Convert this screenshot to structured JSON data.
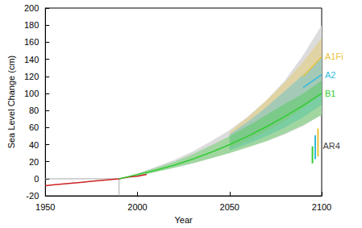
{
  "chart_data": {
    "type": "line",
    "xlabel": "Year",
    "ylabel": "Sea Level Change (cm)",
    "xlim": [
      1950,
      2100
    ],
    "xticks": [
      1950,
      2000,
      2050,
      2100
    ],
    "ylim": [
      -20,
      200
    ],
    "yticks": [
      -20,
      0,
      20,
      40,
      60,
      80,
      100,
      120,
      140,
      160,
      180,
      200
    ],
    "grid": false,
    "observed": {
      "color": "#cc2222",
      "x": [
        1950,
        1955,
        1960,
        1965,
        1970,
        1975,
        1980,
        1985,
        1990,
        1995,
        2000,
        2005
      ],
      "values": [
        -8,
        -7,
        -6,
        -5,
        -4,
        -3,
        -2,
        -1,
        0,
        2,
        3,
        5
      ]
    },
    "baseline": {
      "x": 1990,
      "y": 0
    },
    "x": [
      1990,
      2000,
      2010,
      2020,
      2030,
      2040,
      2050,
      2060,
      2070,
      2080,
      2090,
      2100
    ],
    "range": {
      "lower": [
        0,
        3,
        8,
        13,
        18,
        24,
        30,
        37,
        44,
        52,
        62,
        75
      ],
      "upper": [
        0,
        6,
        14,
        22,
        32,
        44,
        57,
        73,
        92,
        115,
        145,
        180
      ]
    },
    "series": [
      {
        "name": "A1Fi",
        "color": "#e8c43c",
        "values": [
          null,
          null,
          null,
          null,
          null,
          null,
          null,
          null,
          null,
          null,
          120,
          143
        ],
        "lower": [
          null,
          null,
          null,
          null,
          null,
          null,
          35,
          45,
          56,
          68,
          83,
          100
        ],
        "upper": [
          null,
          null,
          null,
          null,
          null,
          null,
          55,
          72,
          92,
          113,
          137,
          165
        ]
      },
      {
        "name": "A2",
        "color": "#33bbdd",
        "values": [
          null,
          null,
          null,
          null,
          null,
          null,
          null,
          null,
          null,
          null,
          107,
          122
        ],
        "lower": [
          null,
          null,
          null,
          null,
          null,
          null,
          33,
          41,
          50,
          60,
          72,
          87
        ],
        "upper": [
          null,
          null,
          null,
          null,
          null,
          null,
          52,
          67,
          84,
          103,
          122,
          142
        ]
      },
      {
        "name": "B1",
        "color": "#33cc33",
        "values": [
          0,
          5,
          10,
          16,
          23,
          31,
          40,
          50,
          61,
          73,
          86,
          100
        ],
        "lower": [
          0,
          3,
          8,
          13,
          18,
          24,
          30,
          37,
          44,
          53,
          63,
          75
        ],
        "upper": [
          0,
          6,
          13,
          20,
          29,
          39,
          50,
          62,
          75,
          88,
          100,
          115
        ]
      }
    ],
    "ar4": {
      "label": "AR4",
      "bars": [
        {
          "name": "B1",
          "x": 2095,
          "low": 18,
          "high": 38
        },
        {
          "name": "A2",
          "x": 2096.5,
          "low": 23,
          "high": 51
        },
        {
          "name": "A1Fi",
          "x": 2098,
          "low": 26,
          "high": 59
        }
      ]
    }
  }
}
